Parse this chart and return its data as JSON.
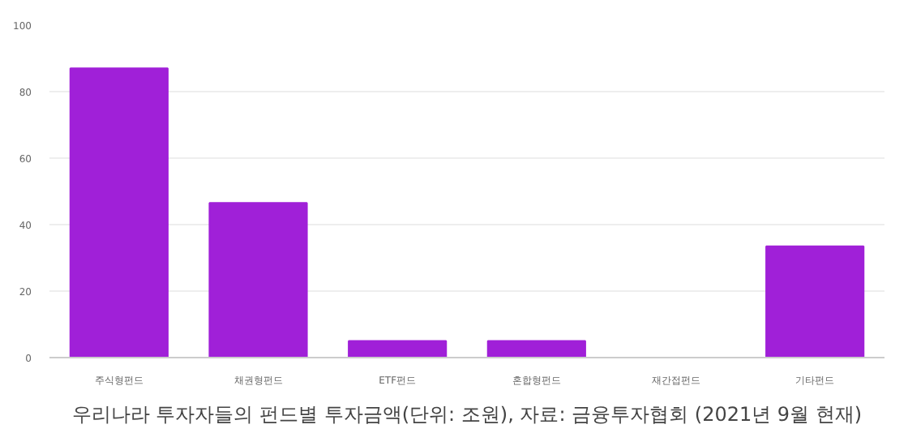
{
  "chart_data": {
    "type": "bar",
    "title": "우리나라 투자자들의 펀드별 투자금액(단위: 조원), 자료: 금융투자협회 (2021년 9월 현재)",
    "categories": [
      "주식형펀드",
      "채권형펀드",
      "ETF펀드",
      "혼합형펀드",
      "재간접펀드",
      "기타펀드"
    ],
    "values": [
      87,
      46.5,
      5,
      5,
      0,
      33.5
    ],
    "color": "#a020d8",
    "ylim": [
      0,
      100
    ],
    "yticks": [
      0,
      20,
      40,
      60,
      80,
      100
    ],
    "grid": "y"
  }
}
